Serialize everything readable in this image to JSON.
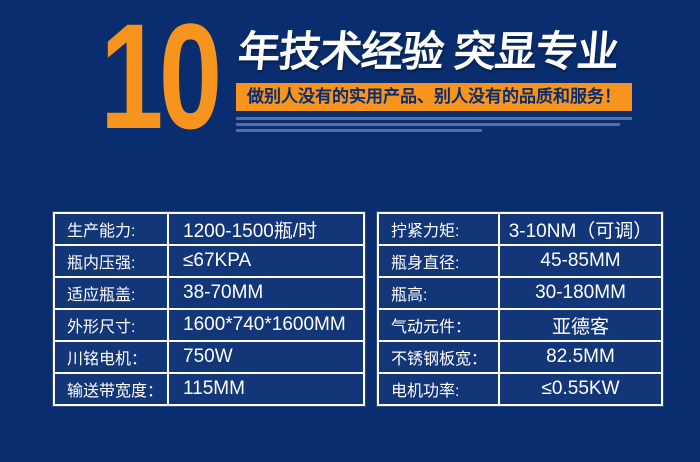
{
  "theme": {
    "background": "#0a2d6f",
    "accent_orange": "#f7941d",
    "table_border": "#ffffff",
    "cell_background": "#123678",
    "text_white": "#ffffff"
  },
  "header": {
    "big_number": "10",
    "title": "年技术经验 突显专业",
    "banner": "做别人没有的实用产品、别人没有的品质和服务！"
  },
  "spec_table": {
    "left": [
      {
        "label": "生产能力:",
        "value": "1200-1500瓶/时"
      },
      {
        "label": "瓶内压强:",
        "value": "≤67KPA"
      },
      {
        "label": "适应瓶盖:",
        "value": "38-70MM"
      },
      {
        "label": "外形尺寸:",
        "value": "1600*740*1600MM"
      },
      {
        "label": "川铭电机：",
        "value": "750W"
      },
      {
        "label": "输送带宽度：",
        "value": "115MM"
      }
    ],
    "right": [
      {
        "label": "拧紧力矩:",
        "value": "3-10NM（可调）"
      },
      {
        "label": "瓶身直径:",
        "value": "45-85MM"
      },
      {
        "label": "瓶高:",
        "value": "30-180MM"
      },
      {
        "label": "气动元件：",
        "value": "亚德客"
      },
      {
        "label": "不锈钢板宽：",
        "value": "82.5MM"
      },
      {
        "label": "电机功率:",
        "value": "≤0.55KW"
      }
    ]
  }
}
